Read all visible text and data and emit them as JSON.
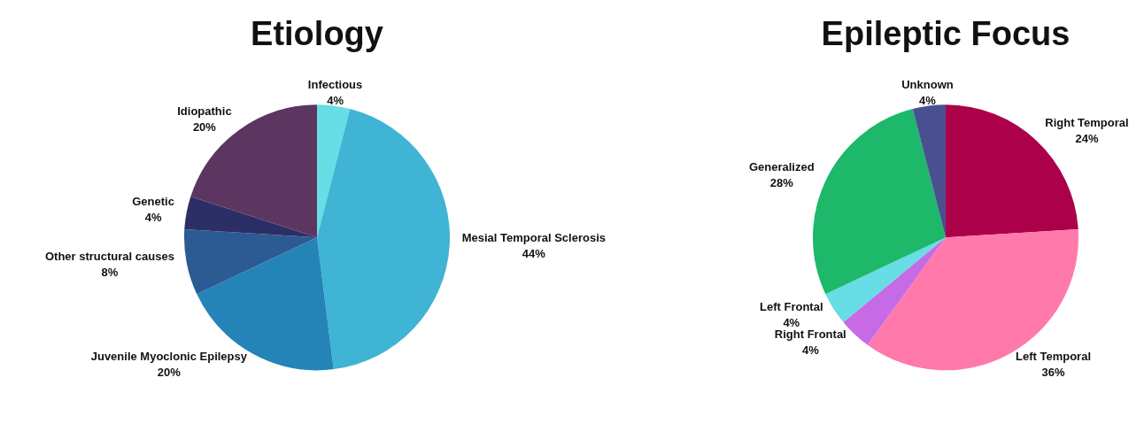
{
  "chart_data": [
    {
      "type": "pie",
      "title": "Etiology",
      "categories": [
        "Infectious",
        "Mesial Temporal Sclerosis",
        "Juvenile Myoclonic Epilepsy",
        "Other structural causes",
        "Genetic",
        "Idiopathic"
      ],
      "values": [
        4,
        44,
        20,
        8,
        4,
        20
      ],
      "value_labels": [
        "4%",
        "44%",
        "20%",
        "8%",
        "4%",
        "20%"
      ],
      "colors": [
        "#67dde6",
        "#3fb4d4",
        "#2484b8",
        "#2c5b94",
        "#2c2f66",
        "#5c3660"
      ],
      "legend": false
    },
    {
      "type": "pie",
      "title": "Epileptic Focus",
      "categories": [
        "Right Temporal",
        "Left Temporal",
        "Right Frontal",
        "Left Frontal",
        "Generalized",
        "Unknown"
      ],
      "values": [
        24,
        36,
        4,
        4,
        28,
        4
      ],
      "value_labels": [
        "24%",
        "36%",
        "4%",
        "4%",
        "28%",
        "4%"
      ],
      "colors": [
        "#ad004a",
        "#ff7aab",
        "#c66ae6",
        "#67dde6",
        "#1db86a",
        "#4a4f8f"
      ],
      "legend": false
    }
  ]
}
